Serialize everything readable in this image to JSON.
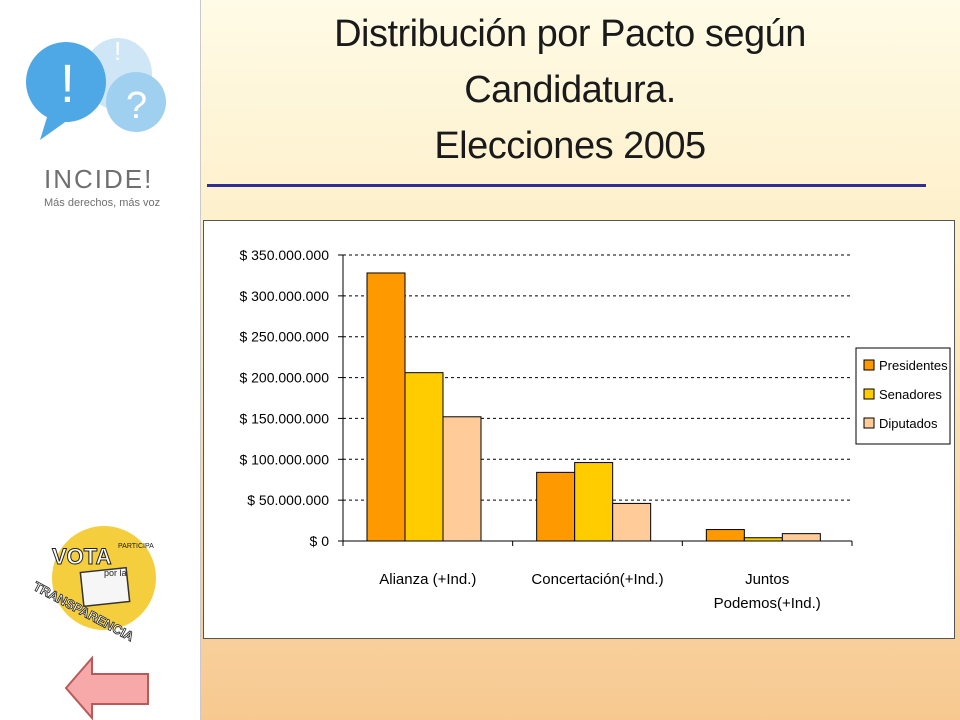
{
  "slide": {
    "title_lines": [
      "Distribución por Pacto según",
      "Candidatura.",
      "Elecciones 2005"
    ]
  },
  "logos": {
    "incide": {
      "name": "INCIDE!",
      "tagline": "Más derechos, más voz"
    },
    "vota": {
      "top": "VOTA",
      "small": "por la",
      "bottom": "TRANSPARENCIA",
      "badge": "PARTICIPA"
    }
  },
  "nav": {
    "back_icon": "left-arrow-icon"
  },
  "colors": {
    "presidentes": "#FF9900",
    "senadores": "#FFCC00",
    "diputados": "#FFCC99",
    "rule": "#2E2E9A"
  },
  "chart_data": {
    "type": "bar",
    "categories": [
      [
        "Alianza (+Ind.)"
      ],
      [
        "Concertación(+Ind.)"
      ],
      [
        "Juntos",
        "Podemos(+Ind.)"
      ]
    ],
    "series": [
      {
        "name": "Presidentes",
        "values": [
          328000000,
          84000000,
          14000000
        ]
      },
      {
        "name": "Senadores",
        "values": [
          206000000,
          96000000,
          4000000
        ]
      },
      {
        "name": "Diputados",
        "values": [
          152000000,
          46000000,
          9000000
        ]
      }
    ],
    "ylim": [
      0,
      350000000
    ],
    "yticks": [
      0,
      50000000,
      100000000,
      150000000,
      200000000,
      250000000,
      300000000,
      350000000
    ],
    "ytick_labels": [
      "$ 0",
      "$ 50.000.000",
      "$ 100.000.000",
      "$ 150.000.000",
      "$ 200.000.000",
      "$ 250.000.000",
      "$ 300.000.000",
      "$ 350.000.000"
    ],
    "grid": true,
    "legend": "right"
  }
}
